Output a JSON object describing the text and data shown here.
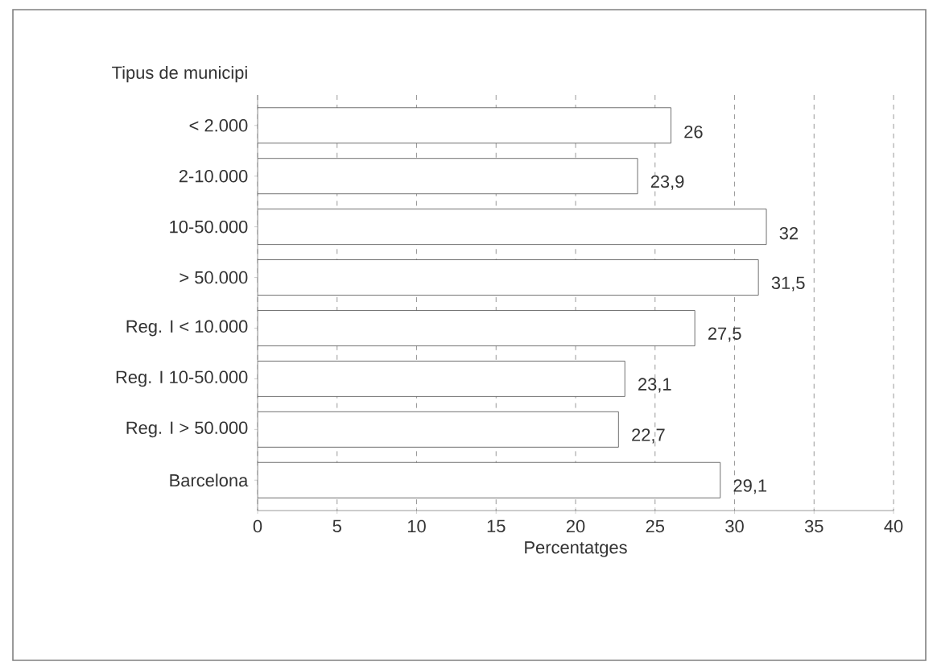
{
  "chart_data": {
    "type": "bar",
    "orientation": "horizontal",
    "ylabel": "Tipus de municipi",
    "xlabel": "Percentatges",
    "categories": [
      "< 2.000",
      "2-10.000",
      "10-50.000",
      "> 50.000",
      "Reg. I < 10.000",
      "Reg. I 10-50.000",
      "Reg. I > 50.000",
      "Barcelona"
    ],
    "values": [
      26,
      23.9,
      32,
      31.5,
      27.5,
      23.1,
      22.7,
      29.1
    ],
    "value_labels": [
      "26",
      "23,9",
      "32",
      "31,5",
      "27,5",
      "23,1",
      "22,7",
      "29,1"
    ],
    "color": "#ffffff",
    "xlim": [
      0,
      40
    ],
    "xticks": [
      0,
      5,
      10,
      15,
      20,
      25,
      30,
      35,
      40
    ],
    "grid": "x"
  }
}
